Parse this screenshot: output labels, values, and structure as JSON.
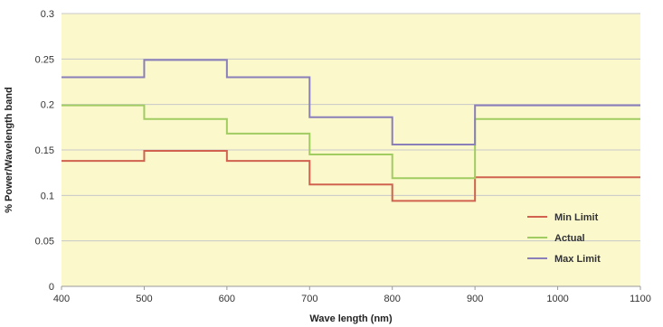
{
  "chart_data": {
    "type": "line",
    "title": "",
    "xlabel": "Wave length (nm)",
    "ylabel": "% Power/Wavelength band",
    "xlim": [
      400,
      1100
    ],
    "ylim": [
      0,
      0.3
    ],
    "x_ticks": [
      400,
      500,
      600,
      700,
      800,
      900,
      1000,
      1100
    ],
    "y_ticks": [
      0,
      0.05,
      0.1,
      0.15,
      0.2,
      0.25,
      0.3
    ],
    "x_tick_labels": [
      "400",
      "500",
      "600",
      "700",
      "800",
      "900",
      "1000",
      "1100"
    ],
    "y_tick_labels": [
      "0",
      "0.05",
      "0.1",
      "0.15",
      "0.2",
      "0.25",
      "0.3"
    ],
    "grid": true,
    "step": true,
    "background_color": "#fbf8cc",
    "legend_position": "right",
    "series": [
      {
        "name": "Min Limit",
        "color": "#d0624f",
        "x": [
          400,
          500,
          600,
          700,
          800,
          900,
          1100
        ],
        "values": [
          0.138,
          0.149,
          0.138,
          0.112,
          0.094,
          0.12,
          0.12
        ]
      },
      {
        "name": "Actual",
        "color": "#a0cc62",
        "x": [
          400,
          500,
          600,
          700,
          800,
          900,
          1100
        ],
        "values": [
          0.199,
          0.184,
          0.168,
          0.145,
          0.119,
          0.184,
          0.184
        ]
      },
      {
        "name": "Max Limit",
        "color": "#8a7fb8",
        "x": [
          400,
          500,
          600,
          700,
          800,
          900,
          1100
        ],
        "values": [
          0.23,
          0.249,
          0.23,
          0.186,
          0.156,
          0.199,
          0.199
        ]
      }
    ]
  }
}
